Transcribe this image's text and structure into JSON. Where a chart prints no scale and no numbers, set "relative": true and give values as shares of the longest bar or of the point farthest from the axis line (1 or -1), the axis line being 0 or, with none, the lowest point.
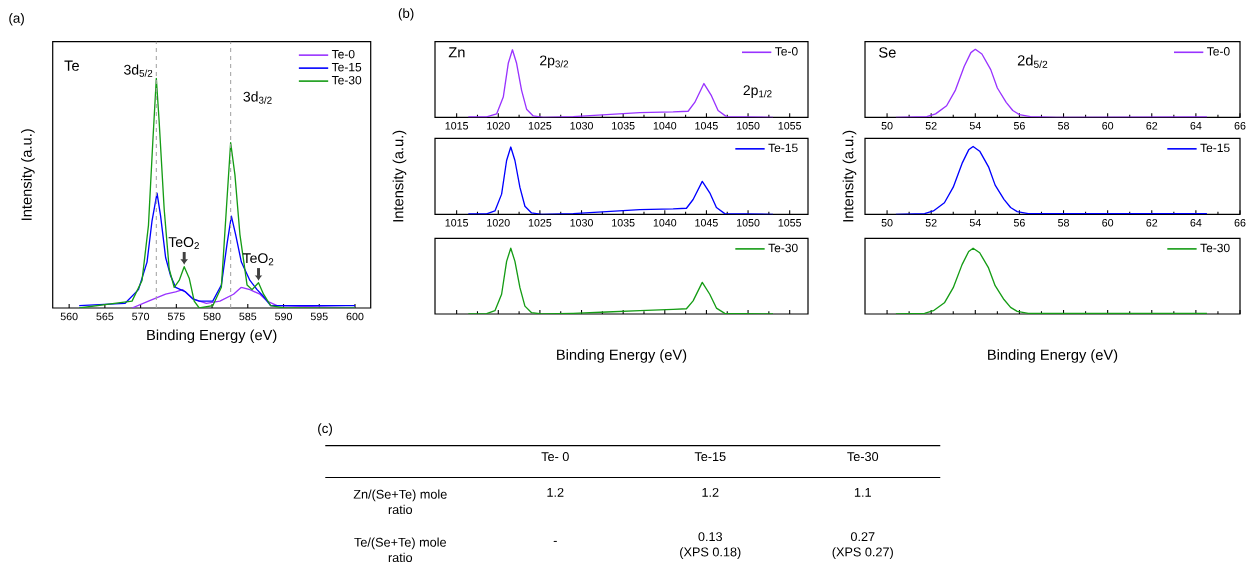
{
  "chart_data": [
    {
      "type": "line",
      "title": "(a)",
      "xlabel": "Binding Energy (eV)",
      "ylabel": "Intensity (a.u.)",
      "relative": true,
      "xlim": [
        557.7,
        602.2
      ],
      "xticks": [
        560,
        565,
        570,
        575,
        580,
        585,
        590,
        595,
        600
      ],
      "legend": "top right",
      "ref_lines": [
        {
          "axis": "x",
          "value": 572.2,
          "color": "#a6a6a6",
          "line_style": "dashed"
        },
        {
          "axis": "x",
          "value": 582.6,
          "color": "#a6a6a6",
          "line_style": "dashed"
        }
      ],
      "annotations": [
        "Te",
        {
          "text": "3d$_{5/2}$",
          "x": 572.2,
          "y": 1.0
        },
        {
          "text": "3d$_{3/2}$",
          "x": 582.6,
          "y": 0.72
        },
        {
          "text": "TeO$_{2}$",
          "x": 576.1,
          "y": 0.18
        },
        {
          "text": "TeO$_{2}$",
          "x": 586.5,
          "y": 0.11
        }
      ],
      "series": [
        {
          "name": "Te-0",
          "color": "#9933ff",
          "x": [
            568.8,
            571.1,
            573.5,
            574.9,
            575.9,
            577.3,
            579.2,
            581.1,
            583.0,
            584.1,
            585.3,
            586.7,
            587.7,
            589.1,
            600.0
          ],
          "values": [
            0,
            0.03,
            0.06,
            0.07,
            0.08,
            0.04,
            0.02,
            0.03,
            0.06,
            0.09,
            0.08,
            0.06,
            0.03,
            0.01,
            0
          ]
        },
        {
          "name": "Te-15",
          "color": "#0000ff",
          "x": [
            561.4,
            567.8,
            569.7,
            570.9,
            571.6,
            572.3,
            572.8,
            573.5,
            574.2,
            574.9,
            575.6,
            576.3,
            577.3,
            578.2,
            580.1,
            581.3,
            582.1,
            582.7,
            583.3,
            584.1,
            585.3,
            586.3,
            587.2,
            588.2,
            590.1,
            600.0
          ],
          "values": [
            0.01,
            0.02,
            0.08,
            0.2,
            0.38,
            0.5,
            0.4,
            0.22,
            0.14,
            0.09,
            0.08,
            0.07,
            0.04,
            0.03,
            0.03,
            0.1,
            0.28,
            0.4,
            0.32,
            0.2,
            0.12,
            0.08,
            0.05,
            0.01,
            0.01,
            0.01
          ]
        },
        {
          "name": "Te-30",
          "color": "#159c15",
          "x": [
            561.4,
            568.8,
            570.2,
            571.1,
            571.7,
            572.2,
            572.6,
            573.3,
            574.0,
            574.7,
            575.4,
            576.1,
            576.8,
            577.5,
            578.2,
            580.1,
            581.3,
            582.0,
            582.6,
            583.2,
            583.9,
            584.9,
            585.6,
            586.5,
            587.2,
            588.2,
            590.1,
            600.0
          ],
          "values": [
            0,
            0.03,
            0.12,
            0.36,
            0.72,
            1.0,
            0.81,
            0.43,
            0.17,
            0.09,
            0.12,
            0.18,
            0.13,
            0.03,
            0,
            0.01,
            0.09,
            0.43,
            0.72,
            0.58,
            0.32,
            0.1,
            0.08,
            0.11,
            0.06,
            0.01,
            0,
            0
          ]
        }
      ]
    },
    {
      "type": "line",
      "title": "(b)",
      "relative": true,
      "xlim": [
        1012.4,
        1057.2
      ],
      "xticks": [
        1015,
        1020,
        1025,
        1030,
        1035,
        1040,
        1045,
        1050,
        1055
      ],
      "tick_labels": "x",
      "legend": "top right",
      "annotations": [
        "Zn",
        {
          "text": "2p$_{3/2}$",
          "x": 1021.7,
          "y": 1.0
        },
        {
          "text": "2p$_{1/2}$",
          "x": 1044.7,
          "y": 0.5
        }
      ],
      "series": [
        {
          "name": "Te-0",
          "color": "#9933ff",
          "x": [
            1016.4,
            1018.6,
            1019.8,
            1020.6,
            1021.2,
            1021.7,
            1022.2,
            1022.8,
            1023.4,
            1024.2,
            1025.4,
            1029,
            1033,
            1037,
            1041,
            1042.8,
            1043.6,
            1044.7,
            1045.6,
            1046.4,
            1047.4,
            1053
          ],
          "values": [
            0.005,
            0.005,
            0.05,
            0.3,
            0.8,
            1.0,
            0.8,
            0.4,
            0.12,
            0.02,
            0,
            0.01,
            0.04,
            0.07,
            0.08,
            0.09,
            0.22,
            0.5,
            0.32,
            0.1,
            0.01,
            0
          ]
        }
      ]
    },
    {
      "type": "line",
      "ylabel": "Intensity (a.u.)",
      "relative": true,
      "xlim": [
        1012.4,
        1057.2
      ],
      "xticks": [
        1015,
        1020,
        1025,
        1030,
        1035,
        1040,
        1045,
        1050,
        1055
      ],
      "tick_labels": "x",
      "legend": "top right",
      "series": [
        {
          "name": "Te-15",
          "color": "#0000ff",
          "x": [
            1016.4,
            1018.6,
            1019.6,
            1020.4,
            1021.0,
            1021.5,
            1022.0,
            1022.6,
            1023.2,
            1024.0,
            1025.2,
            1029,
            1033,
            1037,
            1041,
            1042.6,
            1043.4,
            1044.5,
            1045.4,
            1046.2,
            1047.2,
            1053
          ],
          "values": [
            0.005,
            0.005,
            0.05,
            0.3,
            0.8,
            1.0,
            0.8,
            0.4,
            0.12,
            0.02,
            0,
            0.01,
            0.04,
            0.07,
            0.08,
            0.09,
            0.22,
            0.49,
            0.32,
            0.1,
            0.01,
            0
          ]
        }
      ]
    },
    {
      "type": "line",
      "xlabel": "Binding Energy (eV)",
      "relative": true,
      "xlim": [
        1012.4,
        1057.2
      ],
      "xticks": [
        1015,
        1020,
        1025,
        1030,
        1035,
        1040,
        1045,
        1050,
        1055
      ],
      "tick_labels": false,
      "legend": "top right",
      "series": [
        {
          "name": "Te-30",
          "color": "#159c15",
          "x": [
            1016.4,
            1018.6,
            1019.6,
            1020.4,
            1021.0,
            1021.5,
            1022.0,
            1022.6,
            1023.2,
            1024.0,
            1025.2,
            1029,
            1033,
            1037,
            1041,
            1042.6,
            1043.4,
            1044.5,
            1045.4,
            1046.2,
            1047.2,
            1053
          ],
          "values": [
            0,
            0.005,
            0.05,
            0.3,
            0.8,
            1.0,
            0.8,
            0.4,
            0.12,
            0.02,
            0,
            0.01,
            0.03,
            0.05,
            0.07,
            0.08,
            0.2,
            0.48,
            0.3,
            0.09,
            0.01,
            0
          ]
        }
      ]
    },
    {
      "type": "line",
      "relative": true,
      "xlim": [
        49,
        66
      ],
      "xticks": [
        50,
        52,
        54,
        56,
        58,
        60,
        62,
        64,
        66
      ],
      "tick_labels": "x",
      "legend": "top right",
      "annotations": [
        "Se",
        "2d$_{5/2}$"
      ],
      "series": [
        {
          "name": "Te-0",
          "color": "#9933ff",
          "x": [
            50.4,
            51.8,
            52.2,
            52.7,
            53.1,
            53.5,
            53.8,
            54.0,
            54.3,
            54.7,
            55.0,
            55.4,
            55.7,
            56.0,
            56.5,
            57.7,
            64.5
          ],
          "values": [
            0,
            0.01,
            0.05,
            0.17,
            0.4,
            0.75,
            0.95,
            1.0,
            0.93,
            0.7,
            0.43,
            0.22,
            0.1,
            0.04,
            0.01,
            0,
            0.005
          ]
        }
      ]
    },
    {
      "type": "line",
      "ylabel": "Intensity (a.u.)",
      "relative": true,
      "xlim": [
        49,
        66
      ],
      "xticks": [
        50,
        52,
        54,
        56,
        58,
        60,
        62,
        64,
        66
      ],
      "tick_labels": "x",
      "legend": "top right",
      "series": [
        {
          "name": "Te-15",
          "color": "#0000ff",
          "x": [
            50.4,
            51.7,
            52.1,
            52.6,
            53.0,
            53.4,
            53.7,
            53.9,
            54.2,
            54.6,
            54.9,
            55.3,
            55.6,
            55.9,
            56.4,
            57.6,
            64.5
          ],
          "values": [
            0,
            0.01,
            0.05,
            0.17,
            0.4,
            0.75,
            0.95,
            1.0,
            0.93,
            0.7,
            0.43,
            0.22,
            0.1,
            0.04,
            0.01,
            0.01,
            0.01
          ]
        }
      ]
    },
    {
      "type": "line",
      "xlabel": "Binding Energy (eV)",
      "relative": true,
      "xlim": [
        49,
        66
      ],
      "xticks": [
        50,
        52,
        54,
        56,
        58,
        60,
        62,
        64,
        66
      ],
      "tick_labels": false,
      "legend": "top right",
      "series": [
        {
          "name": "Te-30",
          "color": "#159c15",
          "x": [
            50.4,
            51.7,
            52.1,
            52.6,
            53.0,
            53.4,
            53.7,
            53.9,
            54.2,
            54.6,
            54.9,
            55.3,
            55.6,
            55.9,
            56.4,
            57.6,
            64.5
          ],
          "values": [
            0,
            0.01,
            0.05,
            0.17,
            0.4,
            0.75,
            0.95,
            1.0,
            0.93,
            0.7,
            0.43,
            0.22,
            0.1,
            0.04,
            0.01,
            0.01,
            0.01
          ]
        }
      ]
    },
    {
      "type": "other",
      "title": "(c)",
      "categories": [
        "Te- 0",
        "Te-15",
        "Te-30"
      ],
      "y_categories": [
        "Zn/(Se+Te) mole ratio",
        "Te/(Se+Te) mole ratio"
      ],
      "cell_labels": [
        [
          "1.2",
          "1.2",
          "1.1"
        ],
        [
          "-",
          [
            "0.13",
            "(XPS 0.18)"
          ],
          [
            "0.27",
            "(XPS 0.27)"
          ]
        ]
      ]
    }
  ]
}
